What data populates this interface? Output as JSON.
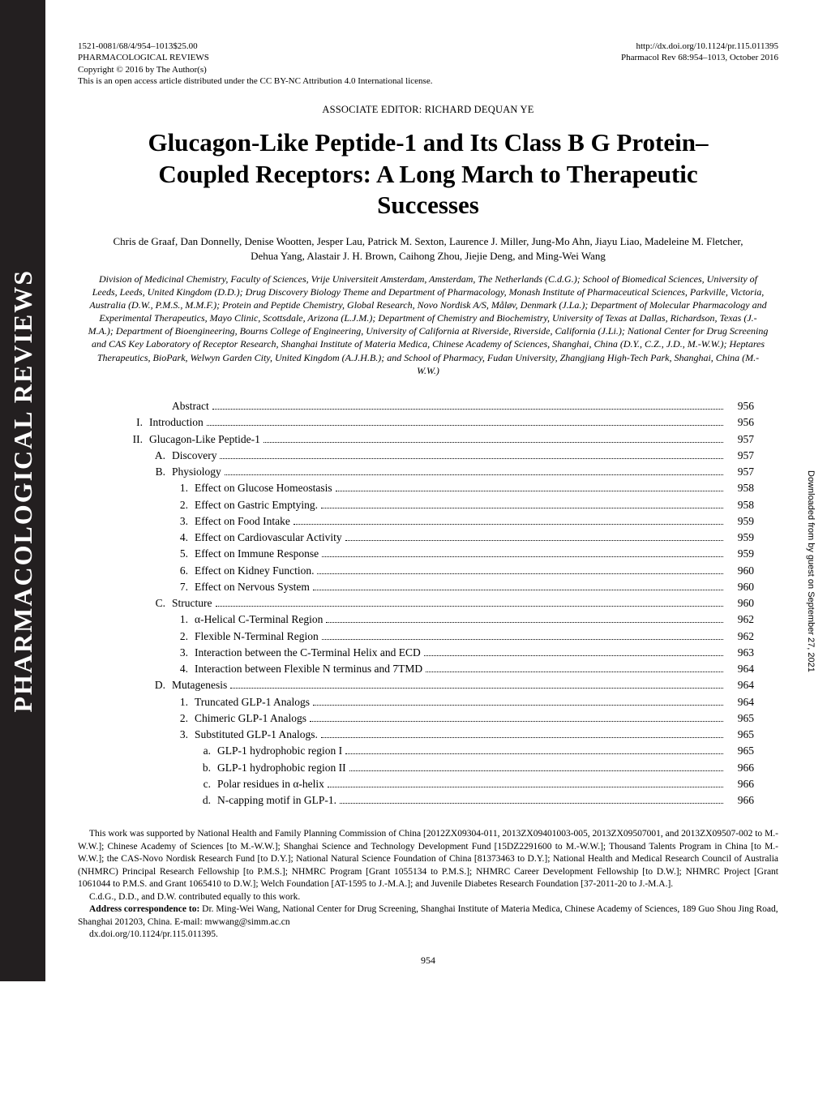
{
  "header": {
    "left_line1": "1521-0081/68/4/954–1013$25.00",
    "left_line2": "PHARMACOLOGICAL REVIEWS",
    "left_line3": "Copyright © 2016 by The Author(s)",
    "license": "This is an open access article distributed under the CC BY-NC Attribution 4.0 International license.",
    "right_line1": "http://dx.doi.org/10.1124/pr.115.011395",
    "right_line2": "Pharmacol Rev 68:954–1013, October 2016"
  },
  "sidebar_label": "PHARMACOLOGICAL REVIEWS",
  "associate_editor": "ASSOCIATE EDITOR: RICHARD DEQUAN YE",
  "title": "Glucagon-Like Peptide-1 and Its Class B G Protein–Coupled Receptors: A Long March to Therapeutic Successes",
  "authors": "Chris de Graaf, Dan Donnelly, Denise Wootten, Jesper Lau, Patrick M. Sexton, Laurence J. Miller, Jung-Mo Ahn, Jiayu Liao, Madeleine M. Fletcher, Dehua Yang, Alastair J. H. Brown, Caihong Zhou, Jiejie Deng, and Ming-Wei Wang",
  "affiliations": "Division of Medicinal Chemistry, Faculty of Sciences, Vrije Universiteit Amsterdam, Amsterdam, The Netherlands (C.d.G.); School of Biomedical Sciences, University of Leeds, Leeds, United Kingdom (D.D.); Drug Discovery Biology Theme and Department of Pharmacology, Monash Institute of Pharmaceutical Sciences, Parkville, Victoria, Australia (D.W., P.M.S., M.M.F.); Protein and Peptide Chemistry, Global Research, Novo Nordisk A/S, Måløv, Denmark (J.La.); Department of Molecular Pharmacology and Experimental Therapeutics, Mayo Clinic, Scottsdale, Arizona (L.J.M.); Department of Chemistry and Biochemistry, University of Texas at Dallas, Richardson, Texas (J.-M.A.); Department of Bioengineering, Bourns College of Engineering, University of California at Riverside, Riverside, California (J.Li.); National Center for Drug Screening and CAS Key Laboratory of Receptor Research, Shanghai Institute of Materia Medica, Chinese Academy of Sciences, Shanghai, China (D.Y., C.Z., J.D., M.-W.W.); Heptares Therapeutics, BioPark, Welwyn Garden City, United Kingdom (A.J.H.B.); and School of Pharmacy, Fudan University, Zhangjiang High-Tech Park, Shanghai, China (M.-W.W.)",
  "toc": [
    {
      "indent": 2,
      "num": "",
      "label": "Abstract",
      "page": "956"
    },
    {
      "indent": 1,
      "num": "I.",
      "label": "Introduction",
      "page": "956"
    },
    {
      "indent": 1,
      "num": "II.",
      "label": "Glucagon-Like Peptide-1",
      "page": "957"
    },
    {
      "indent": 2,
      "num": "A.",
      "label": "Discovery",
      "page": "957"
    },
    {
      "indent": 2,
      "num": "B.",
      "label": "Physiology",
      "page": "957"
    },
    {
      "indent": 3,
      "num": "1.",
      "label": "Effect on Glucose Homeostasis",
      "page": "958"
    },
    {
      "indent": 3,
      "num": "2.",
      "label": "Effect on Gastric Emptying.",
      "page": "958"
    },
    {
      "indent": 3,
      "num": "3.",
      "label": "Effect on Food Intake",
      "page": "959"
    },
    {
      "indent": 3,
      "num": "4.",
      "label": "Effect on Cardiovascular Activity",
      "page": "959"
    },
    {
      "indent": 3,
      "num": "5.",
      "label": "Effect on Immune Response",
      "page": "959"
    },
    {
      "indent": 3,
      "num": "6.",
      "label": "Effect on Kidney Function.",
      "page": "960"
    },
    {
      "indent": 3,
      "num": "7.",
      "label": "Effect on Nervous System",
      "page": "960"
    },
    {
      "indent": 2,
      "num": "C.",
      "label": "Structure",
      "page": "960"
    },
    {
      "indent": 3,
      "num": "1.",
      "label": "α-Helical C-Terminal Region",
      "page": "962"
    },
    {
      "indent": 3,
      "num": "2.",
      "label": "Flexible N-Terminal Region",
      "page": "962"
    },
    {
      "indent": 3,
      "num": "3.",
      "label": "Interaction between the C-Terminal Helix and ECD",
      "page": "963"
    },
    {
      "indent": 3,
      "num": "4.",
      "label": "Interaction between Flexible N terminus and 7TMD",
      "page": "964"
    },
    {
      "indent": 2,
      "num": "D.",
      "label": "Mutagenesis",
      "page": "964"
    },
    {
      "indent": 3,
      "num": "1.",
      "label": "Truncated GLP-1 Analogs",
      "page": "964"
    },
    {
      "indent": 3,
      "num": "2.",
      "label": "Chimeric GLP-1 Analogs",
      "page": "965"
    },
    {
      "indent": 3,
      "num": "3.",
      "label": "Substituted GLP-1 Analogs.",
      "page": "965"
    },
    {
      "indent": 4,
      "num": "a.",
      "label": "GLP-1 hydrophobic region I",
      "page": "965"
    },
    {
      "indent": 4,
      "num": "b.",
      "label": "GLP-1 hydrophobic region II",
      "page": "966"
    },
    {
      "indent": 4,
      "num": "c.",
      "label": "Polar residues in α-helix",
      "page": "966"
    },
    {
      "indent": 4,
      "num": "d.",
      "label": "N-capping motif in GLP-1.",
      "page": "966"
    }
  ],
  "funding": "This work was supported by National Health and Family Planning Commission of China [2012ZX09304-011, 2013ZX09401003-005, 2013ZX09507001, and 2013ZX09507-002 to M.-W.W.]; Chinese Academy of Sciences [to M.-W.W.]; Shanghai Science and Technology Development Fund [15DZ2291600 to M.-W.W.]; Thousand Talents Program in China [to M.-W.W.]; the CAS-Novo Nordisk Research Fund [to D.Y.]; National Natural Science Foundation of China [81373463 to D.Y.]; National Health and Medical Research Council of Australia (NHMRC) Principal Research Fellowship [to P.M.S.]; NHMRC Program [Grant 1055134 to P.M.S.]; NHMRC Career Development Fellowship [to D.W.]; NHMRC Project [Grant 1061044 to P.M.S. and Grant 1065410 to D.W.]; Welch Foundation [AT-1595 to J.-M.A.]; and Juvenile Diabetes Research Foundation [37-2011-20 to J.-M.A.].",
  "contrib": "C.d.G., D.D., and D.W. contributed equally to this work.",
  "correspondence_label": "Address correspondence to:",
  "correspondence": " Dr. Ming-Wei Wang, National Center for Drug Screening, Shanghai Institute of Materia Medica, Chinese Academy of Sciences, 189 Guo Shou Jing Road, Shanghai 201203, China. E-mail: mwwang@simm.ac.cn",
  "doi": "dx.doi.org/10.1124/pr.115.011395.",
  "page_number": "954",
  "download_banner": "Downloaded from by guest on September 27, 2021"
}
